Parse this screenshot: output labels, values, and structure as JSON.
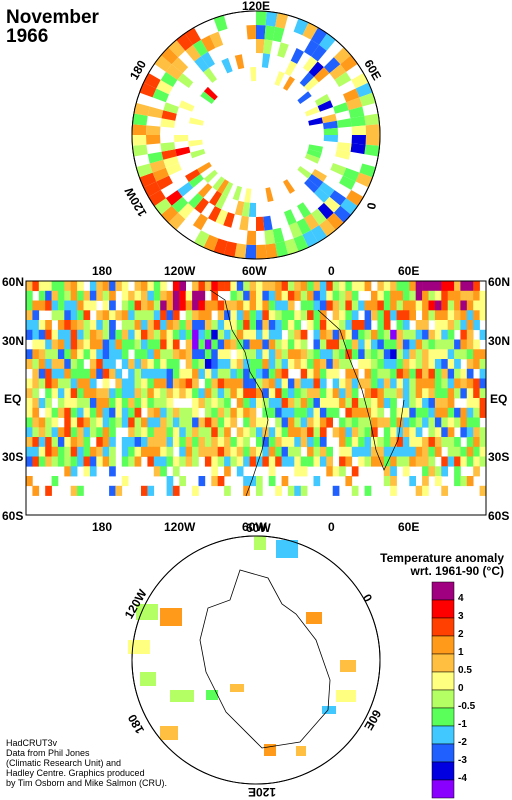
{
  "title": {
    "month": "November",
    "year": "1966"
  },
  "north_polar": {
    "labels": {
      "top": "120E",
      "right": "60E",
      "right_lower": "0",
      "left": "180",
      "left_lower": "120W"
    }
  },
  "equirect": {
    "top_lon": [
      "180",
      "120W",
      "60W",
      "0",
      "60E"
    ],
    "bottom_lon": [
      "180",
      "120W",
      "60W",
      "0",
      "60E"
    ],
    "lat_left": [
      "60N",
      "30N",
      "EQ",
      "30S",
      "60S"
    ],
    "lat_right": [
      "60N",
      "30N",
      "EQ",
      "30S",
      "60S"
    ]
  },
  "south_polar": {
    "labels": {
      "top": "60W",
      "right": "0",
      "right_lower": "60E",
      "bottom": "120E",
      "left": "120W",
      "left_lower": "180"
    }
  },
  "legend": {
    "title_line1": "Temperature anomaly",
    "title_line2": "wrt. 1961-90  (°C)",
    "levels": [
      "4",
      "3",
      "2",
      "1",
      "0.5",
      "0",
      "-0.5",
      "-1",
      "-2",
      "-3",
      "-4"
    ],
    "colors": [
      "#a0007f",
      "#ff0000",
      "#ff4000",
      "#ff9a1a",
      "#ffbf40",
      "#ffff80",
      "#b4ff64",
      "#5aff5a",
      "#40c8ff",
      "#2060ff",
      "#0000e0",
      "#8a00ff"
    ]
  },
  "credit": {
    "line1": "HadCRUT3v",
    "line2": "Data from Phil Jones",
    "line3": "(Climatic Research Unit) and",
    "line4": "Hadley Centre.  Graphics produced",
    "line5": "by Tim Osborn and Mike Salmon (CRU)."
  }
}
